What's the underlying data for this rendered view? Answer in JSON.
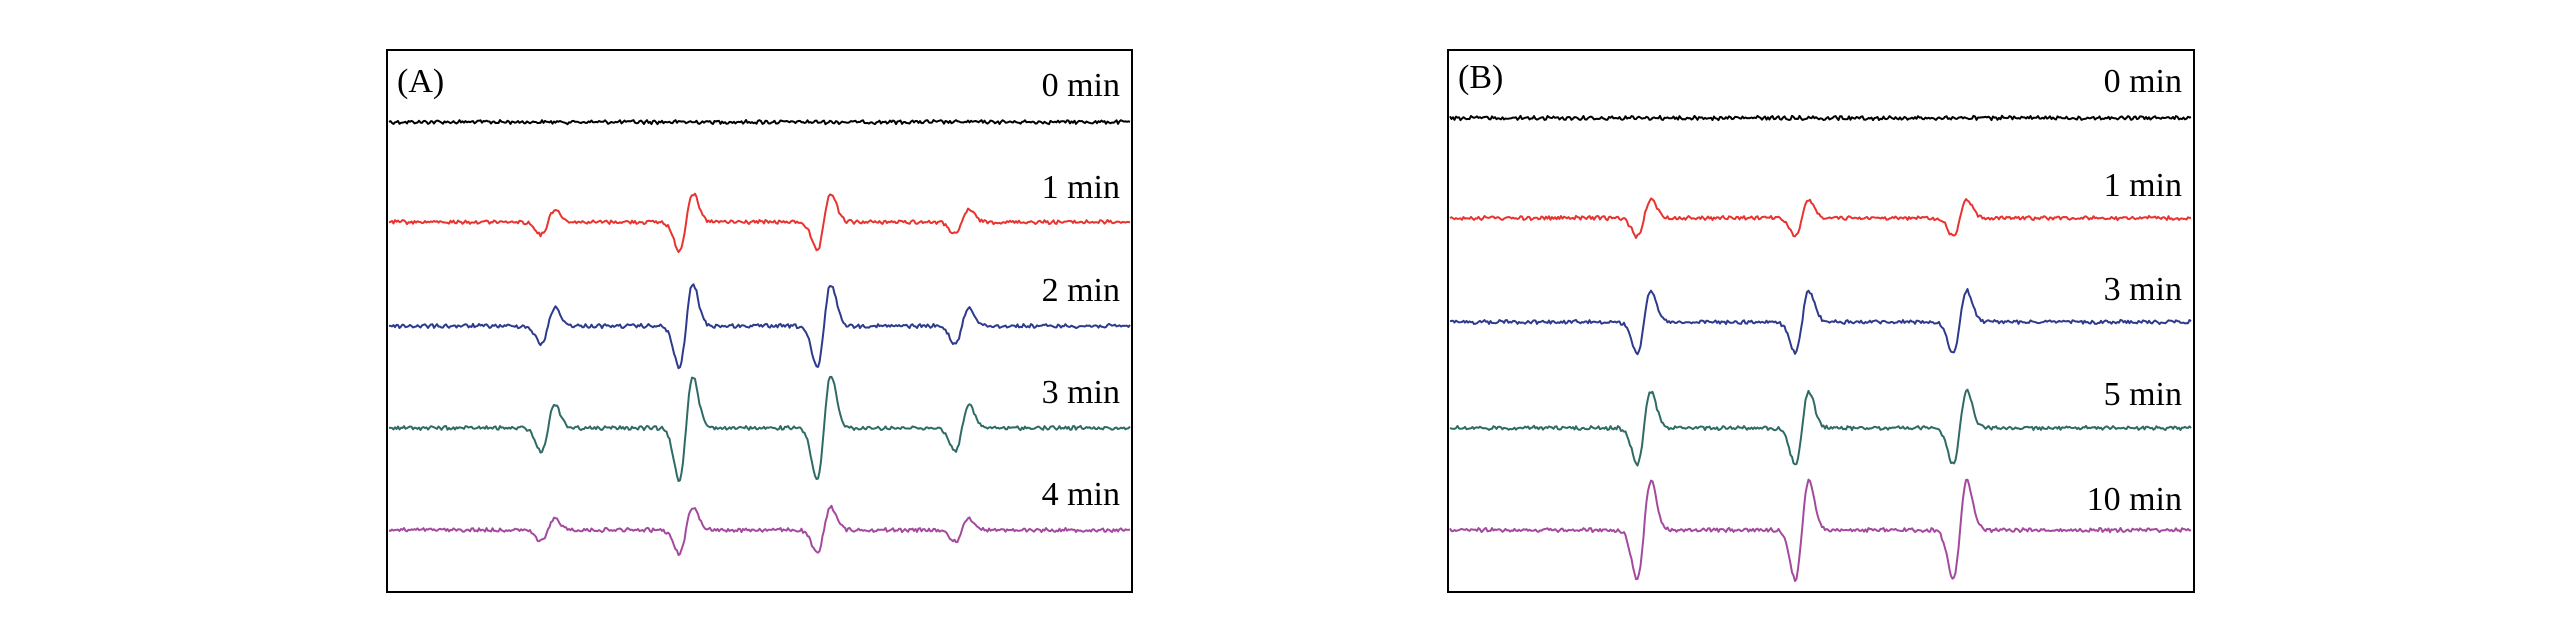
{
  "chart_data": [
    {
      "type": "line",
      "panel_label": "(A)",
      "title": "",
      "xlabel": "",
      "ylabel": "",
      "grid": false,
      "axes_ticks": false,
      "series": [
        {
          "name": "0 min",
          "color": "#000000",
          "peak_lines": [],
          "line_amplitudes": []
        },
        {
          "name": "1 min",
          "color": "#e8332f",
          "peak_lines": [
            1,
            2,
            3,
            4
          ],
          "line_amplitudes": [
            0.24,
            0.55,
            0.55,
            0.24
          ]
        },
        {
          "name": "2 min",
          "color": "#2e3a8c",
          "peak_lines": [
            1,
            2,
            3,
            4
          ],
          "line_amplitudes": [
            0.35,
            0.8,
            0.8,
            0.35
          ]
        },
        {
          "name": "3 min",
          "color": "#2f6b66",
          "peak_lines": [
            1,
            2,
            3,
            4
          ],
          "line_amplitudes": [
            0.45,
            1.0,
            1.0,
            0.45
          ]
        },
        {
          "name": "4 min",
          "color": "#a34a9e",
          "peak_lines": [
            1,
            2,
            3,
            4
          ],
          "line_amplitudes": [
            0.22,
            0.45,
            0.45,
            0.22
          ]
        }
      ]
    },
    {
      "type": "line",
      "panel_label": "(B)",
      "title": "",
      "xlabel": "",
      "ylabel": "",
      "grid": false,
      "axes_ticks": false,
      "series": [
        {
          "name": "0 min",
          "color": "#000000",
          "peak_lines": [],
          "line_amplitudes": []
        },
        {
          "name": "1 min",
          "color": "#e8332f",
          "peak_lines": [
            1,
            2,
            3
          ],
          "line_amplitudes": [
            0.35,
            0.35,
            0.35
          ]
        },
        {
          "name": "3 min",
          "color": "#2e3a8c",
          "peak_lines": [
            1,
            2,
            3
          ],
          "line_amplitudes": [
            0.6,
            0.6,
            0.6
          ]
        },
        {
          "name": "5 min",
          "color": "#2f6b66",
          "peak_lines": [
            1,
            2,
            3
          ],
          "line_amplitudes": [
            0.7,
            0.7,
            0.7
          ]
        },
        {
          "name": "10 min",
          "color": "#a34a9e",
          "peak_lines": [
            1,
            2,
            3
          ],
          "line_amplitudes": [
            0.95,
            0.95,
            0.95
          ]
        }
      ]
    }
  ]
}
